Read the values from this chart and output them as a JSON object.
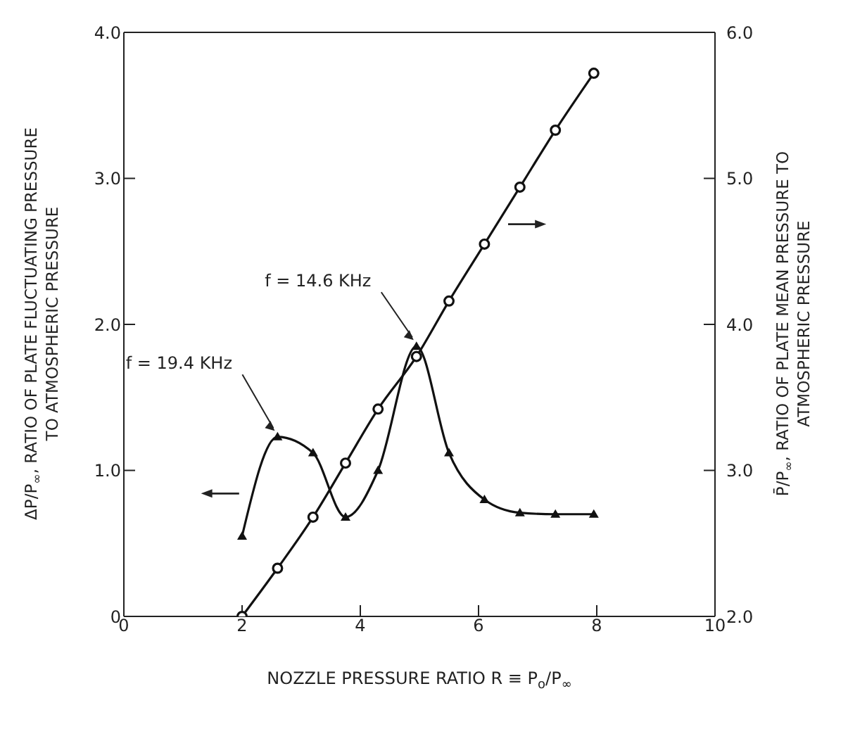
{
  "chart_data": {
    "type": "line",
    "xlabel": "NOZZLE PRESSURE RATIO R ≡ P$_{o}$/P$_{∞}$",
    "ylabel": "ΔP/P$_{∞}$, RATIO OF PLATE FLUCTUATING PRESSURE TO ATMOSPHERIC PRESSURE",
    "y2label": "P̄/P$_{∞}$, RATIO OF PLATE MEAN PRESSURE TO ATMOSPHERIC PRESSURE",
    "xlim": [
      0,
      10
    ],
    "xticks": [
      0,
      2,
      4,
      6,
      8,
      10
    ],
    "ylim": [
      0,
      4
    ],
    "yticks": [
      0,
      {
        "value": 1,
        "label": "1.0"
      },
      {
        "value": 2,
        "label": "2.0"
      },
      {
        "value": 3,
        "label": "3.0"
      },
      {
        "value": 4,
        "label": "4.0"
      }
    ],
    "y2lim": [
      2,
      6
    ],
    "y2ticks": [
      {
        "value": 2,
        "label": "2.0"
      },
      {
        "value": 3,
        "label": "3.0"
      },
      {
        "value": 4,
        "label": "4.0"
      },
      {
        "value": 5,
        "label": "5.0"
      },
      {
        "value": 6,
        "label": "6.0"
      }
    ],
    "series": [
      {
        "color": "#111111",
        "marker": "triangle",
        "x": [
          2.0,
          2.6,
          3.2,
          3.75,
          4.3,
          4.95,
          5.5,
          6.1,
          6.7,
          7.3,
          7.95
        ],
        "values": [
          0.55,
          1.23,
          1.12,
          0.68,
          1.0,
          1.85,
          1.12,
          0.8,
          0.71,
          0.7,
          0.7
        ]
      },
      {
        "color": "#111111",
        "marker": "circle",
        "axis": "y2",
        "x": [
          2.0,
          2.6,
          3.2,
          3.75,
          4.3,
          4.95,
          5.5,
          6.1,
          6.7,
          7.3,
          7.95
        ],
        "values": [
          2.0,
          2.33,
          2.68,
          3.05,
          3.42,
          3.78,
          4.16,
          4.55,
          4.94,
          5.33,
          5.72
        ]
      }
    ],
    "annotations": [
      {
        "text": "f = 19.4 KHz",
        "x": 2.6,
        "y": 1.23
      },
      {
        "text": "f = 14.6 KHz",
        "x": 4.95,
        "y": 1.85
      }
    ]
  }
}
